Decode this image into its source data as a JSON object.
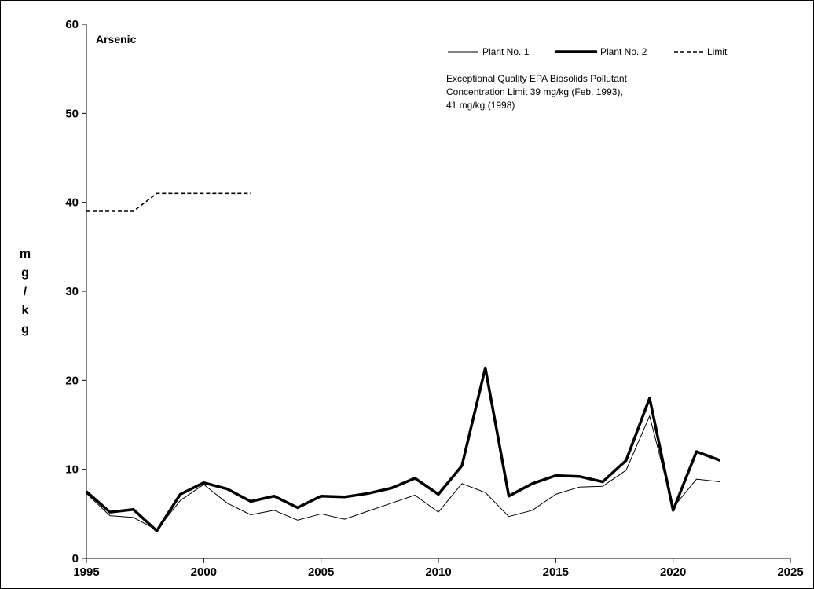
{
  "chart_data": {
    "type": "line",
    "title": "Arsenic",
    "ylabel": "mg/kg",
    "xlabel": "",
    "xlim": [
      1995,
      2025
    ],
    "ylim": [
      0,
      60
    ],
    "xticks": [
      1995,
      2000,
      2005,
      2010,
      2015,
      2020,
      2025
    ],
    "yticks": [
      0,
      10,
      20,
      30,
      40,
      50,
      60
    ],
    "grid": false,
    "legend_position": "top-right",
    "annotation": [
      "Exceptional Quality EPA Biosolids Pollutant",
      "Concentration Limit 39 mg/kg (Feb. 1993),",
      "41 mg/kg (1998)"
    ],
    "series": [
      {
        "name": "Plant No. 1",
        "style": "thin",
        "color": "#000000",
        "x": [
          1995,
          1996,
          1997,
          1998,
          1999,
          2000,
          2001,
          2002,
          2003,
          2004,
          2005,
          2006,
          2007,
          2008,
          2009,
          2010,
          2011,
          2012,
          2013,
          2014,
          2015,
          2016,
          2017,
          2018,
          2019,
          2020,
          2021,
          2022
        ],
        "values": [
          7.3,
          4.8,
          4.6,
          3.2,
          6.5,
          8.3,
          6.2,
          4.9,
          5.4,
          4.3,
          5.0,
          4.4,
          5.3,
          6.2,
          7.1,
          5.2,
          8.4,
          7.4,
          4.7,
          5.4,
          7.2,
          8.0,
          8.1,
          9.9,
          16.0,
          5.7,
          8.9,
          8.6
        ]
      },
      {
        "name": "Plant No. 2",
        "style": "thick",
        "color": "#000000",
        "x": [
          1995,
          1996,
          1997,
          1998,
          1999,
          2000,
          2001,
          2002,
          2003,
          2004,
          2005,
          2006,
          2007,
          2008,
          2009,
          2010,
          2011,
          2012,
          2013,
          2014,
          2015,
          2016,
          2017,
          2018,
          2019,
          2020,
          2021,
          2022
        ],
        "values": [
          7.5,
          5.2,
          5.5,
          3.1,
          7.2,
          8.5,
          7.8,
          6.4,
          7.0,
          5.7,
          7.0,
          6.9,
          7.3,
          7.9,
          9.0,
          7.2,
          10.4,
          21.4,
          7.0,
          8.4,
          9.3,
          9.2,
          8.6,
          11.0,
          18.0,
          5.4,
          12.0,
          11.0
        ]
      },
      {
        "name": "Limit",
        "style": "dashed",
        "color": "#000000",
        "x": [
          1995,
          1997,
          1998,
          2002
        ],
        "values": [
          39,
          39,
          41,
          41
        ]
      }
    ]
  }
}
